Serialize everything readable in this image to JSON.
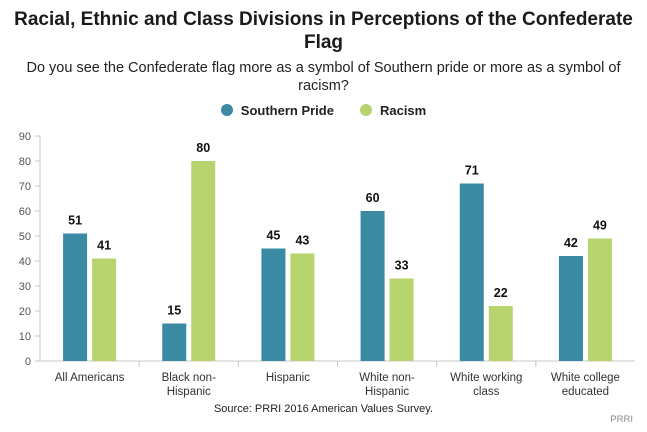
{
  "chart_data": {
    "type": "bar",
    "title": "Racial, Ethnic and Class Divisions in Perceptions of the Confederate Flag",
    "subtitle": "Do you see the Confederate flag more as a symbol of Southern pride or more as a symbol of racism?",
    "categories": [
      [
        "All Americans"
      ],
      [
        "Black non-",
        "Hispanic"
      ],
      [
        "Hispanic"
      ],
      [
        "White non-",
        "Hispanic"
      ],
      [
        "White working",
        "class"
      ],
      [
        "White college",
        "educated"
      ]
    ],
    "series": [
      {
        "name": "Southern Pride",
        "color": "#3a8aa3",
        "values": [
          51,
          15,
          45,
          60,
          71,
          42
        ]
      },
      {
        "name": "Racism",
        "color": "#b7d46f",
        "values": [
          41,
          80,
          43,
          33,
          22,
          49
        ]
      }
    ],
    "ylim": [
      0,
      90
    ],
    "yticks": [
      0,
      10,
      20,
      30,
      40,
      50,
      60,
      70,
      80,
      90
    ],
    "legend_position": "top-center",
    "grid": false
  },
  "source": "Source: PRRI 2016 American Values Survey.",
  "brand": "PRRI"
}
